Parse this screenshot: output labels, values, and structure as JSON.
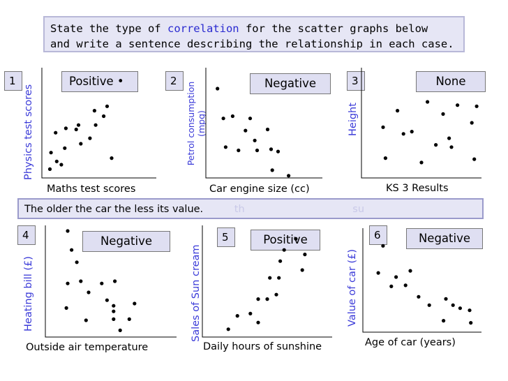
{
  "instructions": {
    "before": "State the type of ",
    "highlight": "correlation",
    "after": " for the scatter graphs below",
    "line2": "and write a sentence describing the relationship in each case."
  },
  "answer_bar": {
    "text": "The older the car the less its value.",
    "faded1": "th",
    "faded2": "su"
  },
  "colors": {
    "axis_label": "#3a3ad8",
    "panel_fill": "#e6e6f5",
    "box_fill": "#dfdff2"
  },
  "chart_data": [
    {
      "type": "scatter",
      "number": "1",
      "answer": "Positive",
      "answer_dot": "•",
      "xlabel": "Maths test scores",
      "ylabel": "Physics test scores",
      "points": [
        [
          0.07,
          0.92
        ],
        [
          0.08,
          0.77
        ],
        [
          0.13,
          0.85
        ],
        [
          0.17,
          0.88
        ],
        [
          0.12,
          0.59
        ],
        [
          0.2,
          0.73
        ],
        [
          0.21,
          0.55
        ],
        [
          0.32,
          0.52
        ],
        [
          0.34,
          0.69
        ],
        [
          0.3,
          0.56
        ],
        [
          0.42,
          0.64
        ],
        [
          0.46,
          0.39
        ],
        [
          0.47,
          0.52
        ],
        [
          0.54,
          0.44
        ],
        [
          0.57,
          0.35
        ],
        [
          0.61,
          0.82
        ]
      ]
    },
    {
      "type": "scatter",
      "number": "2",
      "answer": "Negative",
      "xlabel": "Car engine size (cc)",
      "ylabel_line1": "Petrol consumption",
      "ylabel_line2": "(mpg)",
      "points": [
        [
          0.1,
          0.19
        ],
        [
          0.15,
          0.46
        ],
        [
          0.23,
          0.44
        ],
        [
          0.38,
          0.46
        ],
        [
          0.42,
          0.66
        ],
        [
          0.17,
          0.72
        ],
        [
          0.28,
          0.75
        ],
        [
          0.34,
          0.57
        ],
        [
          0.44,
          0.75
        ],
        [
          0.53,
          0.56
        ],
        [
          0.56,
          0.74
        ],
        [
          0.62,
          0.76
        ],
        [
          0.57,
          0.93
        ],
        [
          0.71,
          0.98
        ]
      ]
    },
    {
      "type": "scatter",
      "number": "3",
      "answer": "None",
      "xlabel": "KS 3 Results",
      "ylabel": "Height",
      "points": [
        [
          0.18,
          0.54
        ],
        [
          0.3,
          0.39
        ],
        [
          0.42,
          0.58
        ],
        [
          0.55,
          0.31
        ],
        [
          0.68,
          0.42
        ],
        [
          0.8,
          0.34
        ],
        [
          0.35,
          0.6
        ],
        [
          0.62,
          0.7
        ],
        [
          0.73,
          0.64
        ],
        [
          0.75,
          0.72
        ],
        [
          0.92,
          0.5
        ],
        [
          0.94,
          0.83
        ],
        [
          0.96,
          0.35
        ],
        [
          0.2,
          0.82
        ],
        [
          0.5,
          0.86
        ]
      ]
    },
    {
      "type": "scatter",
      "number": "4",
      "answer": "Negative",
      "xlabel": "Outside air temperature",
      "ylabel": "Heating bill (£)",
      "points": [
        [
          0.17,
          0.05
        ],
        [
          0.2,
          0.22
        ],
        [
          0.24,
          0.33
        ],
        [
          0.17,
          0.52
        ],
        [
          0.27,
          0.5
        ],
        [
          0.16,
          0.74
        ],
        [
          0.33,
          0.6
        ],
        [
          0.47,
          0.67
        ],
        [
          0.43,
          0.52
        ],
        [
          0.52,
          0.77
        ],
        [
          0.52,
          0.84
        ],
        [
          0.31,
          0.85
        ],
        [
          0.57,
          0.94
        ],
        [
          0.68,
          0.7
        ],
        [
          0.64,
          0.84
        ],
        [
          0.52,
          0.72
        ],
        [
          0.53,
          0.5
        ]
      ]
    },
    {
      "type": "scatter",
      "number": "5",
      "answer": "Positive",
      "xlabel": "Daily hours of sunshine",
      "ylabel": "Sales of Sun cream",
      "points": [
        [
          0.2,
          0.93
        ],
        [
          0.27,
          0.81
        ],
        [
          0.37,
          0.79
        ],
        [
          0.43,
          0.87
        ],
        [
          0.43,
          0.66
        ],
        [
          0.5,
          0.66
        ],
        [
          0.52,
          0.47
        ],
        [
          0.57,
          0.62
        ],
        [
          0.59,
          0.47
        ],
        [
          0.6,
          0.32
        ],
        [
          0.63,
          0.22
        ],
        [
          0.72,
          0.12
        ],
        [
          0.77,
          0.4
        ],
        [
          0.79,
          0.26
        ]
      ]
    },
    {
      "type": "scatter",
      "number": "6",
      "answer": "Negative",
      "xlabel": "Age of car (years)",
      "ylabel": "Value of car (£)",
      "points": [
        [
          0.17,
          0.17
        ],
        [
          0.13,
          0.43
        ],
        [
          0.24,
          0.56
        ],
        [
          0.28,
          0.47
        ],
        [
          0.36,
          0.55
        ],
        [
          0.4,
          0.41
        ],
        [
          0.47,
          0.66
        ],
        [
          0.56,
          0.74
        ],
        [
          0.7,
          0.68
        ],
        [
          0.68,
          0.89
        ],
        [
          0.82,
          0.77
        ],
        [
          0.76,
          0.74
        ],
        [
          0.9,
          0.79
        ],
        [
          0.91,
          0.91
        ]
      ]
    }
  ]
}
